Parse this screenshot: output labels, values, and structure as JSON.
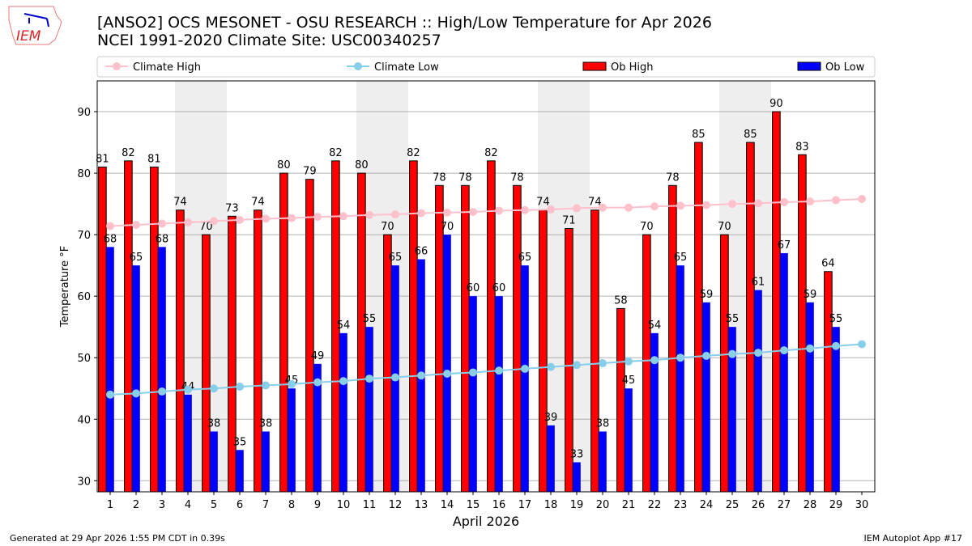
{
  "logo_text": "IEM",
  "title": {
    "line1": "[ANSO2] OCS MESONET - OSU RESEARCH :: High/Low Temperature for Apr 2026",
    "line2": "NCEI 1991-2020 Climate Site: USC00340257"
  },
  "footer": {
    "left": "Generated at 29 Apr 2026 1:55 PM CDT in 0.39s",
    "right": "IEM Autoplot App #17"
  },
  "chart_data": {
    "type": "bar",
    "xlabel": "April 2026",
    "ylabel": "Temperature °F",
    "xlim": [
      0.5,
      30.5
    ],
    "ylim": [
      28.2,
      95
    ],
    "x": [
      1,
      2,
      3,
      4,
      5,
      6,
      7,
      8,
      9,
      10,
      11,
      12,
      13,
      14,
      15,
      16,
      17,
      18,
      19,
      20,
      21,
      22,
      23,
      24,
      25,
      26,
      27,
      28,
      29,
      30
    ],
    "yticks": [
      30,
      40,
      50,
      60,
      70,
      80,
      90
    ],
    "grid": true,
    "legend": "top",
    "weekend_shading": [
      [
        4,
        5
      ],
      [
        11,
        12
      ],
      [
        18,
        19
      ],
      [
        25,
        26
      ]
    ],
    "series": [
      {
        "name": "Climate High",
        "kind": "line",
        "color": "#ffc0cb",
        "values": [
          71.4,
          71.6,
          71.8,
          72.0,
          72.2,
          72.4,
          72.6,
          72.7,
          72.9,
          73.0,
          73.2,
          73.3,
          73.5,
          73.6,
          73.7,
          73.9,
          74.0,
          74.1,
          74.3,
          74.4,
          74.4,
          74.6,
          74.7,
          74.8,
          75.0,
          75.1,
          75.3,
          75.4,
          75.6,
          75.8
        ]
      },
      {
        "name": "Climate Low",
        "kind": "line",
        "color": "#87ceeb",
        "values": [
          44.0,
          44.2,
          44.5,
          44.8,
          45.0,
          45.3,
          45.5,
          45.7,
          46.0,
          46.2,
          46.6,
          46.8,
          47.1,
          47.4,
          47.6,
          47.9,
          48.2,
          48.5,
          48.8,
          49.1,
          49.4,
          49.6,
          50.0,
          50.3,
          50.6,
          50.8,
          51.2,
          51.5,
          51.9,
          52.2
        ]
      },
      {
        "name": "Ob High",
        "kind": "bar",
        "color": "#ff0000",
        "values": [
          81,
          82,
          81,
          74,
          70,
          73,
          74,
          80,
          79,
          82,
          80,
          70,
          82,
          78,
          78,
          82,
          78,
          74,
          71,
          74,
          58,
          70,
          78,
          85,
          70,
          85,
          90,
          83,
          64,
          null
        ]
      },
      {
        "name": "Ob Low",
        "kind": "bar",
        "color": "#0000ff",
        "values": [
          68,
          65,
          68,
          44,
          38,
          35,
          38,
          45,
          49,
          54,
          55,
          65,
          66,
          70,
          60,
          60,
          65,
          39,
          33,
          38,
          45,
          54,
          65,
          59,
          55,
          61,
          67,
          59,
          55,
          null
        ]
      }
    ]
  }
}
